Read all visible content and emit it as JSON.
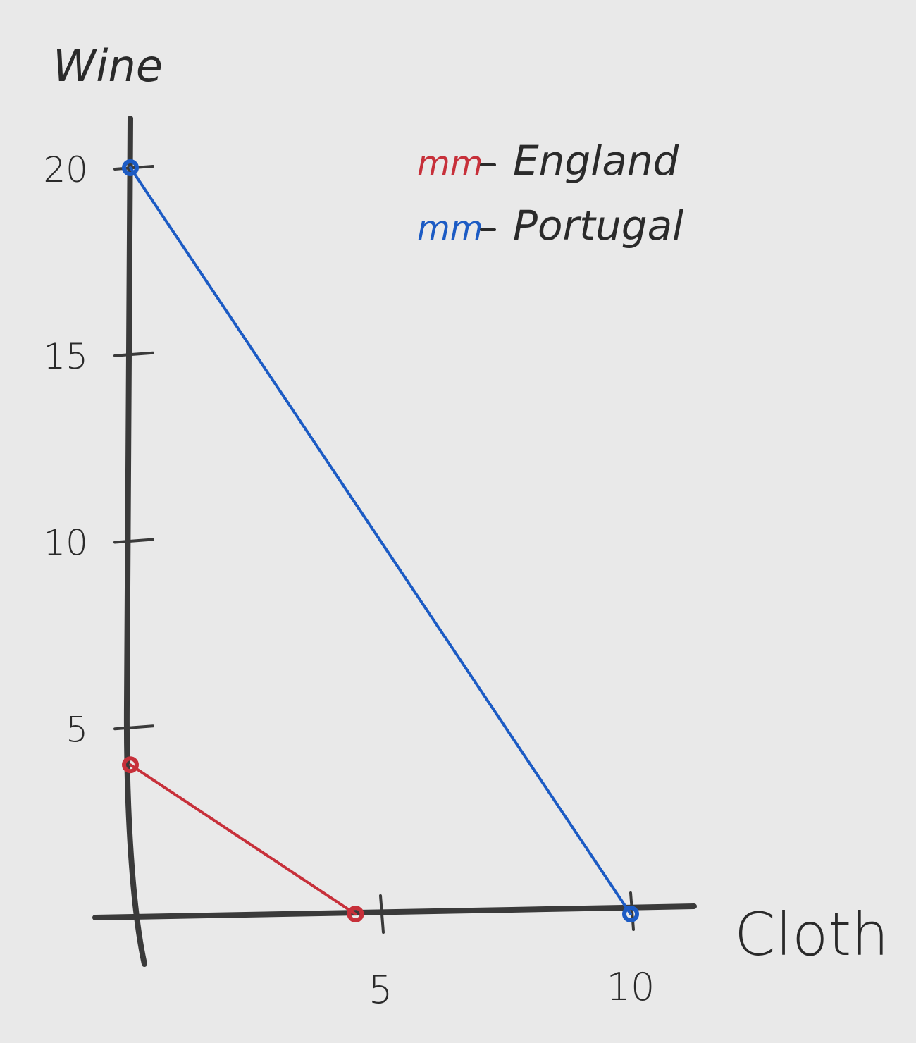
{
  "chart_data": {
    "type": "line",
    "xlabel": "Cloth",
    "ylabel": "Wine",
    "xlim": [
      0,
      12
    ],
    "ylim": [
      0,
      20
    ],
    "x_ticks": [
      5,
      10
    ],
    "y_ticks": [
      5,
      10,
      15,
      20
    ],
    "grid": false,
    "legend_position": "top-right",
    "series": [
      {
        "name": "England",
        "color": "#c7303a",
        "points": [
          [
            0,
            4
          ],
          [
            4.5,
            0
          ]
        ]
      },
      {
        "name": "Portugal",
        "color": "#1c5bc4",
        "points": [
          [
            0,
            20
          ],
          [
            10,
            0
          ]
        ]
      }
    ],
    "legend_marker": "m"
  },
  "colors": {
    "background": "#e9e9e9",
    "ink": "#3a3a3a"
  }
}
